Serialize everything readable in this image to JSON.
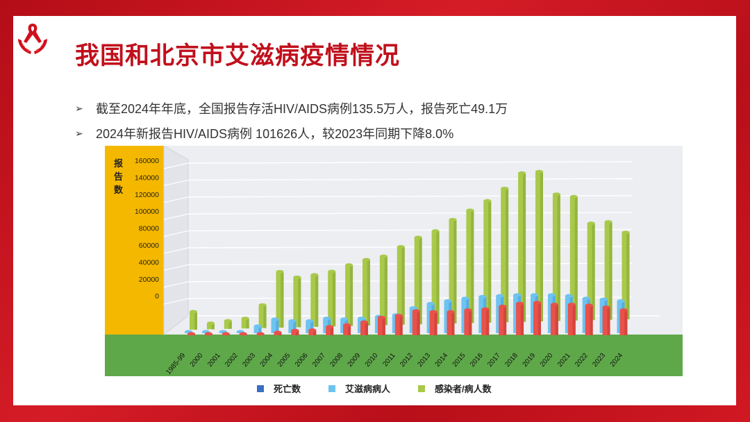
{
  "slide": {
    "title": "我国和北京市艾滋病疫情情况",
    "bullets": [
      "截至2024年年底，全国报告存活HIV/AIDS病例135.5万人，报告死亡49.1万",
      "2024年新报告HIV/AIDS病例 101626人，较2023年同期下降8.0%"
    ],
    "bullet_marker": "➢",
    "logo_icon": "red-ribbon-hands-icon"
  },
  "colors": {
    "brand_red": "#c0101c",
    "y_panel": "#f5b800",
    "x_band": "#5fa84a",
    "deaths": "#e8524a",
    "aids": "#6ec3f0",
    "infected": "#a9c94a"
  },
  "chart_data": {
    "type": "bar",
    "ylabel": "报告数",
    "y_ticks": [
      "160000",
      "140000",
      "120000",
      "100000",
      "80000",
      "60000",
      "40000",
      "20000",
      "0"
    ],
    "categories": [
      "1985-99",
      "2000",
      "2001",
      "2002",
      "2003",
      "2004",
      "2005",
      "2006",
      "2007",
      "2008",
      "2009",
      "2010",
      "2011",
      "2012",
      "2013",
      "2014",
      "2015",
      "2016",
      "2017",
      "2018",
      "2019",
      "2020",
      "2021",
      "2022",
      "2023",
      "2024"
    ],
    "series": [
      {
        "name": "死亡数",
        "legend_color": "#3a6fc4",
        "values": [
          500,
          300,
          400,
          500,
          1000,
          3000,
          5000,
          5500,
          9000,
          11000,
          14000,
          19000,
          21000,
          26000,
          25000,
          25000,
          27000,
          28000,
          31000,
          34000,
          35000,
          33000,
          33000,
          32000,
          30000,
          27000
        ]
      },
      {
        "name": "艾滋病病人",
        "legend_color": "#6ec3f0",
        "values": [
          1500,
          600,
          800,
          1200,
          8000,
          16000,
          14000,
          14000,
          17000,
          16000,
          17000,
          19000,
          21000,
          29000,
          34000,
          37000,
          40000,
          42000,
          43000,
          44000,
          44000,
          44000,
          43000,
          40000,
          39000,
          37000
        ]
      },
      {
        "name": "感染者/病人数",
        "legend_color": "#a9c94a",
        "values": [
          18000,
          6000,
          8000,
          10000,
          23000,
          56000,
          50000,
          52000,
          55000,
          61000,
          66000,
          69000,
          78000,
          87000,
          93000,
          104000,
          113000,
          122000,
          134000,
          149000,
          150000,
          127000,
          124000,
          97000,
          98000,
          87000
        ]
      }
    ]
  }
}
